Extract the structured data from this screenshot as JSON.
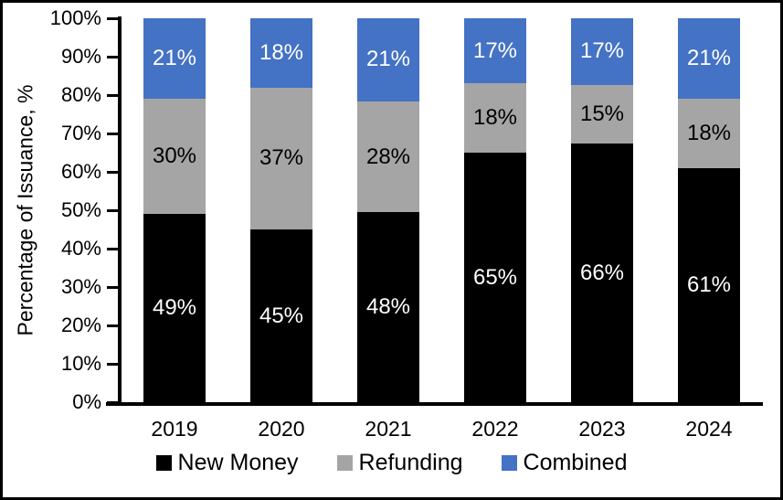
{
  "chart_data": {
    "type": "bar",
    "stacked": true,
    "title": "",
    "xlabel": "",
    "ylabel": "Percentage of Issuance, %",
    "categories": [
      "2019",
      "2020",
      "2021",
      "2022",
      "2023",
      "2024"
    ],
    "series": [
      {
        "name": "New Money",
        "color": "#000000",
        "label_color": "#FFFFFF",
        "values": [
          49,
          45,
          48,
          65,
          66,
          61
        ]
      },
      {
        "name": "Refunding",
        "color": "#A5A5A5",
        "label_color": "#000000",
        "values": [
          30,
          37,
          28,
          18,
          15,
          18
        ]
      },
      {
        "name": "Combined",
        "color": "#4472C4",
        "label_color": "#FFFFFF",
        "values": [
          21,
          18,
          21,
          17,
          17,
          21
        ]
      }
    ],
    "value_suffix": "%",
    "ylim": [
      0,
      100
    ],
    "y_ticks": [
      "100%",
      "90%",
      "80%",
      "70%",
      "60%",
      "50%",
      "40%",
      "30%",
      "20%",
      "10%",
      "0%"
    ],
    "grid": false,
    "legend_position": "bottom"
  },
  "frame": {
    "border_color": "#000000",
    "background": "#FFFFFF"
  }
}
